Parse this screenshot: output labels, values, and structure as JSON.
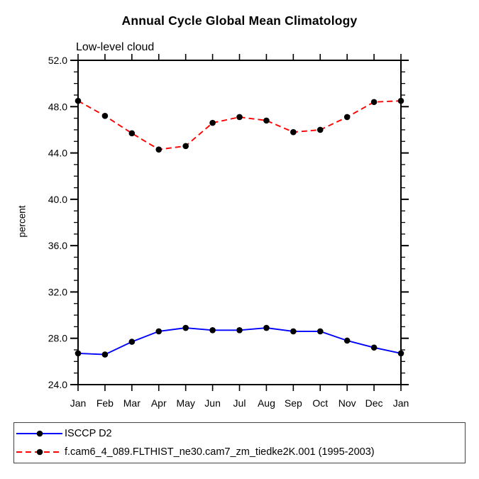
{
  "page": {
    "title": "Annual Cycle Global Mean Climatology",
    "subtitle": "Low-level cloud"
  },
  "chart_data": {
    "type": "line",
    "title": "Annual Cycle Global Mean Climatology",
    "subtitle": "Low-level cloud",
    "xlabel": "",
    "ylabel": "percent",
    "categories": [
      "Jan",
      "Feb",
      "Mar",
      "Apr",
      "May",
      "Jun",
      "Jul",
      "Aug",
      "Sep",
      "Oct",
      "Nov",
      "Dec",
      "Jan"
    ],
    "series": [
      {
        "name": "ISCCP D2",
        "color": "#0000ff",
        "line_style": "solid",
        "marker": "filled-black-circle",
        "values": [
          26.7,
          26.6,
          27.7,
          28.6,
          28.9,
          28.7,
          28.7,
          28.9,
          28.6,
          28.6,
          27.8,
          27.2,
          26.7
        ]
      },
      {
        "name": "f.cam6_4_089.FLTHIST_ne30.cam7_zm_tiedke2K.001 (1995-2003)",
        "color": "#ff0000",
        "line_style": "dashed",
        "marker": "filled-black-circle",
        "values": [
          48.5,
          47.2,
          45.7,
          44.3,
          44.6,
          46.6,
          47.1,
          46.8,
          45.8,
          46.0,
          47.1,
          48.4,
          48.5
        ]
      }
    ],
    "ylim": [
      24.0,
      52.0
    ],
    "ytick_major_interval": 4.0,
    "ytick_minor_interval": 1.0,
    "ytick_labels": [
      "24.0",
      "28.0",
      "32.0",
      "36.0",
      "40.0",
      "44.0",
      "48.0",
      "52.0"
    ],
    "grid": false,
    "axis_color": "#000000",
    "marker_color": "#000000",
    "legend_position": "bottom-box"
  },
  "legend": {
    "items": [
      {
        "label": "ISCCP D2",
        "color": "#0000ff",
        "line_style": "solid"
      },
      {
        "label": "f.cam6_4_089.FLTHIST_ne30.cam7_zm_tiedke2K.001 (1995-2003)",
        "color": "#ff0000",
        "line_style": "dashed"
      }
    ]
  }
}
